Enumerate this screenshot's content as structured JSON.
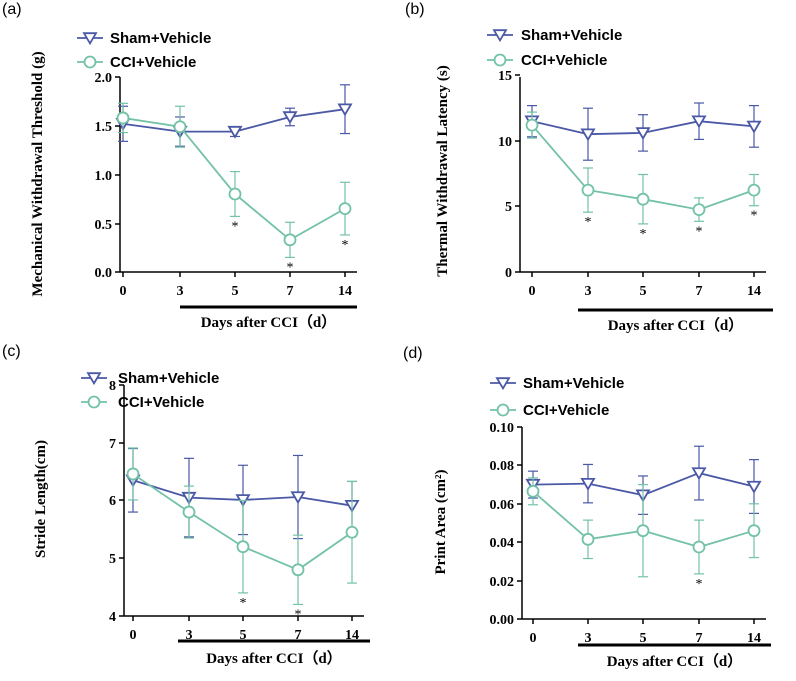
{
  "colors": {
    "sham": "#4A58A6",
    "cci": "#73C2A6",
    "axis": "#000000"
  },
  "chart_data": [
    {
      "type": "line",
      "panel_label": "(a)",
      "ylabel": "Mechanical Withdrawal Threshold (g)",
      "xlabel": "Days after CCI（d）",
      "categories": [
        "0",
        "3",
        "5",
        "7",
        "14"
      ],
      "ylim": [
        0,
        2.0
      ],
      "yticks": [
        "0.0",
        "0.5",
        "1.0",
        "1.5",
        "2.0"
      ],
      "series": [
        {
          "name": "Sham+Vehicle",
          "marker": "triangle-down",
          "color": "sham",
          "values": [
            1.52,
            1.44,
            1.44,
            1.59,
            1.67
          ],
          "errors": [
            0.18,
            0.15,
            0.05,
            0.09,
            0.25
          ]
        },
        {
          "name": "CCI+Vehicle",
          "marker": "circle",
          "color": "cci",
          "values": [
            1.58,
            1.49,
            0.8,
            0.33,
            0.65
          ],
          "errors": [
            0.15,
            0.21,
            0.23,
            0.18,
            0.27
          ]
        }
      ],
      "significance": [
        "",
        "",
        "*",
        "*",
        "*"
      ]
    },
    {
      "type": "line",
      "panel_label": "(b)",
      "ylabel": "Thermal Withdrawal Latency (s)",
      "xlabel": "Days after CCI（d）",
      "categories": [
        "0",
        "3",
        "5",
        "7",
        "14"
      ],
      "ylim": [
        0,
        15
      ],
      "yticks": [
        "0",
        "5",
        "10",
        "15"
      ],
      "series": [
        {
          "name": "Sham+Vehicle",
          "marker": "triangle-down",
          "color": "sham",
          "values": [
            11.6,
            10.6,
            10.7,
            11.6,
            11.2
          ],
          "errors": [
            1.2,
            2.0,
            1.4,
            1.4,
            1.6
          ]
        },
        {
          "name": "CCI+Vehicle",
          "marker": "circle",
          "color": "cci",
          "values": [
            11.3,
            6.3,
            5.6,
            4.8,
            6.3
          ],
          "errors": [
            1.0,
            1.7,
            1.9,
            0.9,
            1.2
          ]
        }
      ],
      "significance": [
        "",
        "*",
        "*",
        "*",
        "*"
      ]
    },
    {
      "type": "line",
      "panel_label": "(c)",
      "ylabel": "Stride Length(cm)",
      "xlabel": "Days after CCI（d）",
      "categories": [
        "0",
        "3",
        "5",
        "7",
        "14"
      ],
      "ylim": [
        4,
        8
      ],
      "yticks": [
        "4",
        "5",
        "6",
        "7",
        "8"
      ],
      "series": [
        {
          "name": "Sham+Vehicle",
          "marker": "triangle-down",
          "color": "sham",
          "values": [
            6.35,
            6.05,
            6.01,
            6.06,
            5.91
          ],
          "errors": [
            0.55,
            0.68,
            0.6,
            0.72,
            0.42
          ]
        },
        {
          "name": "CCI+Vehicle",
          "marker": "circle",
          "color": "cci",
          "values": [
            6.46,
            5.8,
            5.2,
            4.8,
            5.45
          ],
          "errors": [
            0.45,
            0.45,
            0.8,
            0.6,
            0.88
          ]
        }
      ],
      "significance": [
        "",
        "",
        "*",
        "*",
        ""
      ]
    },
    {
      "type": "line",
      "panel_label": "(d)",
      "ylabel": "Print Area (cm²)",
      "xlabel": "Days after CCI（d）",
      "categories": [
        "0",
        "3",
        "5",
        "7",
        "14"
      ],
      "ylim": [
        0,
        0.1
      ],
      "yticks": [
        "0.00",
        "0.02",
        "0.04",
        "0.06",
        "0.08",
        "0.10"
      ],
      "series": [
        {
          "name": "Sham+Vehicle",
          "marker": "triangle-down",
          "color": "sham",
          "values": [
            0.07,
            0.0705,
            0.0645,
            0.076,
            0.069
          ],
          "errors": [
            0.007,
            0.01,
            0.01,
            0.014,
            0.014
          ]
        },
        {
          "name": "CCI+Vehicle",
          "marker": "circle",
          "color": "cci",
          "values": [
            0.0665,
            0.0415,
            0.046,
            0.0375,
            0.046
          ],
          "errors": [
            0.007,
            0.01,
            0.024,
            0.014,
            0.014
          ]
        }
      ],
      "significance": [
        "",
        "",
        "",
        "*",
        ""
      ]
    }
  ]
}
